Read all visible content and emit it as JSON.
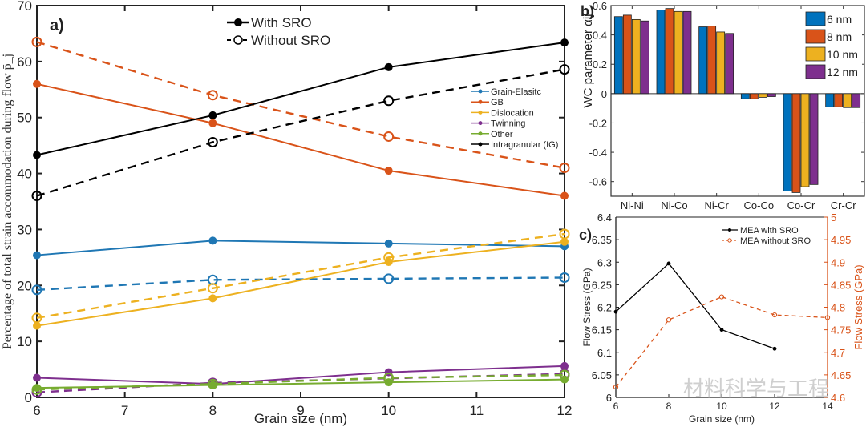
{
  "chart_data": [
    {
      "panel": "a)",
      "type": "line",
      "title": "",
      "xlabel": "Grain size (nm)",
      "ylabel": "Percentage of total strain accommodation during flow p̄_j",
      "xlim": [
        6,
        12
      ],
      "ylim": [
        0,
        70
      ],
      "xticks": [
        6,
        7,
        8,
        9,
        10,
        11,
        12
      ],
      "yticks": [
        0,
        10,
        20,
        30,
        40,
        50,
        60,
        70
      ],
      "x": [
        6,
        8,
        10,
        12
      ],
      "style_legend": [
        {
          "label": "With SRO",
          "style": "solid-filled"
        },
        {
          "label": "Without SRO",
          "style": "dashed-open"
        }
      ],
      "legend_placement": "center-right",
      "series": [
        {
          "name": "Grain-Elasitc",
          "color": "#1f77b4",
          "with_sro": [
            25.4,
            28.0,
            27.5,
            27.0
          ],
          "without_sro": [
            19.2,
            21.0,
            21.2,
            21.4
          ]
        },
        {
          "name": "GB",
          "color": "#d95319",
          "with_sro": [
            56.0,
            49.0,
            40.5,
            36.0
          ],
          "without_sro": [
            63.5,
            54.0,
            46.6,
            41.0
          ]
        },
        {
          "name": "Dislocation",
          "color": "#edb120",
          "with_sro": [
            12.8,
            17.7,
            24.2,
            27.8
          ],
          "without_sro": [
            14.2,
            19.5,
            25.0,
            29.2
          ]
        },
        {
          "name": "Twinning",
          "color": "#7e2f8e",
          "with_sro": [
            3.5,
            2.4,
            4.5,
            5.6
          ],
          "without_sro": [
            0.9,
            2.6,
            3.4,
            4.2
          ]
        },
        {
          "name": "Other",
          "color": "#77ac30",
          "with_sro": [
            1.7,
            2.2,
            2.7,
            3.2
          ],
          "without_sro": [
            1.4,
            2.4,
            3.5,
            4.0
          ]
        },
        {
          "name": "Intragranular (IG)",
          "color": "#000000",
          "with_sro": [
            43.3,
            50.4,
            59.0,
            63.4
          ],
          "without_sro": [
            36.0,
            45.6,
            53.0,
            58.6
          ]
        }
      ]
    },
    {
      "panel": "b)",
      "type": "bar",
      "ylabel": "WC parameter α_ij",
      "ylim": [
        -0.7,
        0.6
      ],
      "yticks": [
        -0.6,
        -0.4,
        -0.2,
        0,
        0.2,
        0.4,
        0.6
      ],
      "categories": [
        "Ni-Ni",
        "Ni-Co",
        "Ni-Cr",
        "Co-Co",
        "Co-Cr",
        "Cr-Cr"
      ],
      "legend_placement": "top-right",
      "series": [
        {
          "name": "6 nm",
          "color": "#0072bd",
          "values": [
            0.525,
            0.57,
            0.455,
            -0.035,
            -0.665,
            -0.09
          ]
        },
        {
          "name": "8 nm",
          "color": "#d95319",
          "values": [
            0.535,
            0.58,
            0.46,
            -0.035,
            -0.675,
            -0.09
          ]
        },
        {
          "name": "10 nm",
          "color": "#edb120",
          "values": [
            0.505,
            0.56,
            0.42,
            -0.025,
            -0.635,
            -0.095
          ]
        },
        {
          "name": "12 nm",
          "color": "#7e2f8e",
          "values": [
            0.495,
            0.56,
            0.41,
            -0.02,
            -0.62,
            -0.095
          ]
        }
      ]
    },
    {
      "panel": "c)",
      "type": "line",
      "xlabel": "Grain size (nm)",
      "ylabel_left": "Flow Stress (GPa)",
      "ylabel_right": "Flow Stress (GPa)",
      "xlim": [
        6,
        14
      ],
      "xticks": [
        6,
        8,
        10,
        12,
        14
      ],
      "ylim_left": [
        6,
        6.4
      ],
      "yticks_left": [
        "6",
        "6.05",
        "6.1",
        "6.15",
        "6.2",
        "6.25",
        "6.3",
        "6.35",
        "6.4"
      ],
      "ylim_right": [
        4.6,
        5
      ],
      "yticks_right": [
        "4.6",
        "4.65",
        "4.7",
        "4.75",
        "4.8",
        "4.85",
        "4.9",
        "4.95",
        "5"
      ],
      "legend_placement": "top-right",
      "series": [
        {
          "name": "MEA with SRO",
          "axis": "left",
          "color": "#000000",
          "style": "solid",
          "x": [
            6,
            8,
            10,
            12
          ],
          "values": [
            6.19,
            6.297,
            6.15,
            6.108
          ]
        },
        {
          "name": "MEA without SRO",
          "axis": "right",
          "color": "#d95319",
          "style": "dashed",
          "x": [
            6,
            8,
            10,
            12,
            14
          ],
          "values": [
            4.623,
            4.772,
            4.823,
            4.783,
            4.777
          ]
        }
      ]
    }
  ],
  "watermark": "材料科学与工程"
}
